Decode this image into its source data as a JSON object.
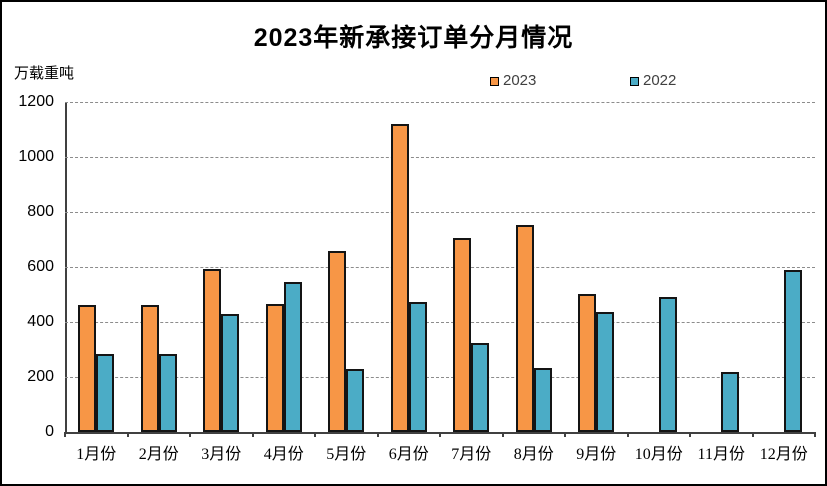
{
  "title": "2023年新承接订单分月情况",
  "unit_label": "万载重吨",
  "chart_data": {
    "type": "bar",
    "title": "2023年新承接订单分月情况",
    "ylabel": "万载重吨",
    "xlabel": "",
    "categories": [
      "1月份",
      "2月份",
      "3月份",
      "4月份",
      "5月份",
      "6月份",
      "7月份",
      "8月份",
      "9月份",
      "10月份",
      "11月份",
      "12月份"
    ],
    "series": [
      {
        "name": "2023",
        "color": "#F79646",
        "values": [
          460,
          462,
          592,
          465,
          657,
          1120,
          707,
          754,
          500,
          null,
          null,
          null
        ]
      },
      {
        "name": "2022",
        "color": "#4BACC6",
        "values": [
          283,
          284,
          428,
          544,
          228,
          474,
          323,
          232,
          438,
          492,
          220,
          589
        ]
      }
    ],
    "ylim": [
      0,
      1200
    ],
    "yticks": [
      0,
      200,
      400,
      600,
      800,
      1000,
      1200
    ],
    "grid": "horizontal-dashed",
    "legend_position": "top-center",
    "bar_border_color": "#141414",
    "axis_color": "#404040",
    "gridline_color": "#8c8c8c"
  }
}
